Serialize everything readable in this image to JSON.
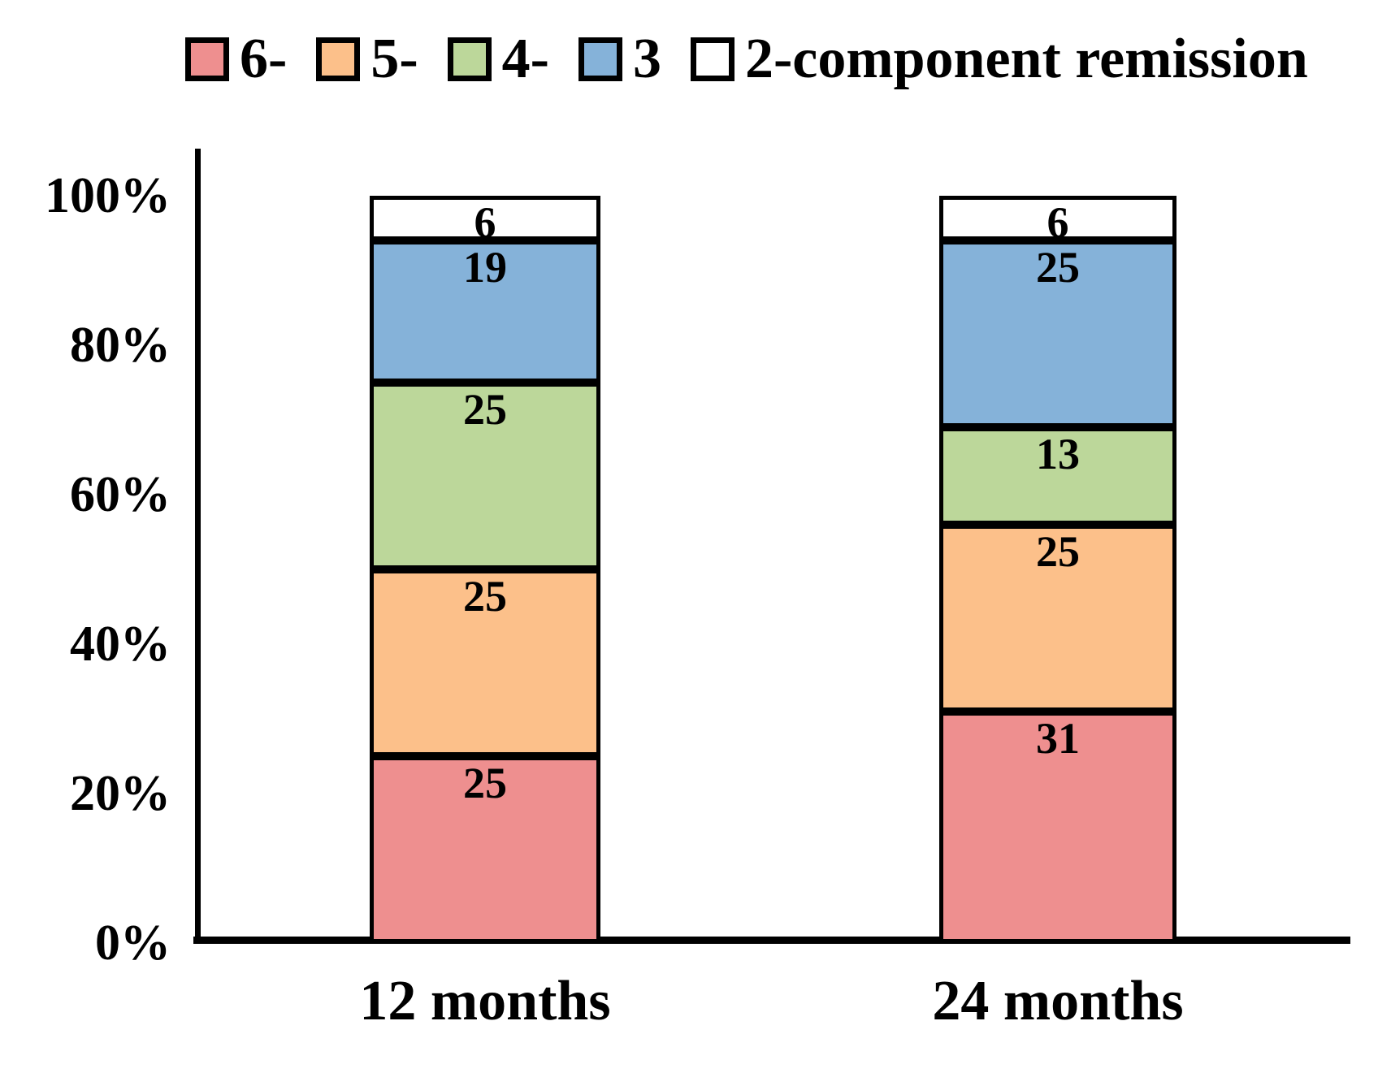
{
  "chart_data": {
    "type": "bar",
    "stacked": true,
    "orientation": "vertical",
    "title": "",
    "xlabel": "",
    "ylabel": "",
    "categories": [
      "12 months",
      "24 months"
    ],
    "series": [
      {
        "name": "6-",
        "color": "#ee8f8f",
        "values": [
          25,
          31
        ]
      },
      {
        "name": "5-",
        "color": "#fcc08a",
        "values": [
          25,
          25
        ]
      },
      {
        "name": "4-",
        "color": "#bcd79a",
        "values": [
          25,
          13
        ]
      },
      {
        "name": "3",
        "color": "#85b2d9",
        "values": [
          19,
          25
        ]
      },
      {
        "name": "2-component remission",
        "color": "#ffffff",
        "values": [
          6,
          6
        ]
      }
    ],
    "ylim": [
      0,
      100
    ],
    "yticks": [
      {
        "value": 0,
        "label": "0%"
      },
      {
        "value": 20,
        "label": "20%"
      },
      {
        "value": 40,
        "label": "40%"
      },
      {
        "value": 60,
        "label": "60%"
      },
      {
        "value": 80,
        "label": "80%"
      },
      {
        "value": 100,
        "label": "100%"
      }
    ],
    "legend_position": "top",
    "grid": false,
    "value_labels_shown": true,
    "segment_border_color": "#000000",
    "axis_color": "#000000",
    "text_color": "#000000",
    "background_color": "#ffffff"
  }
}
